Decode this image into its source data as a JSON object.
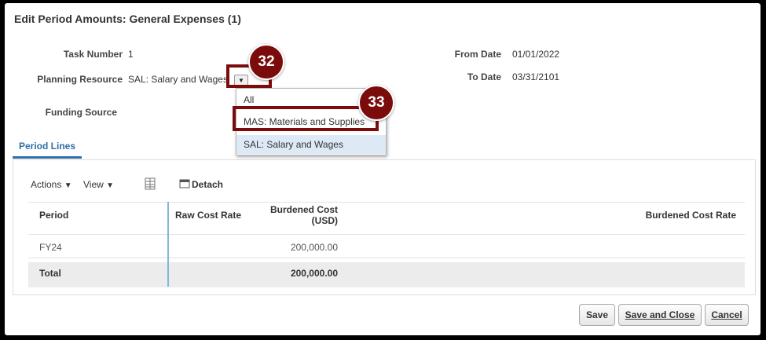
{
  "dialog": {
    "title": "Edit Period Amounts: General Expenses (1)"
  },
  "fields": {
    "task_number": {
      "label": "Task Number",
      "value": "1"
    },
    "planning_resource": {
      "label": "Planning Resource",
      "value": "SAL: Salary and Wages"
    },
    "funding_source": {
      "label": "Funding Source"
    },
    "from_date": {
      "label": "From Date",
      "value": "01/01/2022"
    },
    "to_date": {
      "label": "To Date",
      "value": "03/31/2101"
    }
  },
  "dropdown": {
    "options": [
      "All",
      "MAS: Materials and Supplies",
      "SAL: Salary and Wages"
    ],
    "selected_index": 2
  },
  "callouts": {
    "first": "32",
    "second": "33",
    "color": "#7b0c0c"
  },
  "tabs": {
    "period_lines": "Period Lines"
  },
  "toolbar": {
    "actions": "Actions",
    "view": "View",
    "detach": "Detach",
    "grid_icon": "freeze-columns-icon",
    "detach_icon": "detach-icon"
  },
  "table": {
    "headers": {
      "period": "Period",
      "raw_cost_rate": "Raw Cost Rate",
      "burdened_cost_line1": "Burdened Cost",
      "burdened_cost_line2": "(USD)",
      "burdened_cost_rate": "Burdened Cost Rate"
    },
    "rows": [
      {
        "period": "FY24",
        "burdened_cost": "200,000.00"
      }
    ],
    "total": {
      "label": "Total",
      "burdened_cost": "200,000.00"
    }
  },
  "buttons": {
    "save": "Save",
    "save_and_close": "Save and Close",
    "cancel": "Cancel"
  },
  "colors": {
    "accent": "#2f6ea5"
  }
}
